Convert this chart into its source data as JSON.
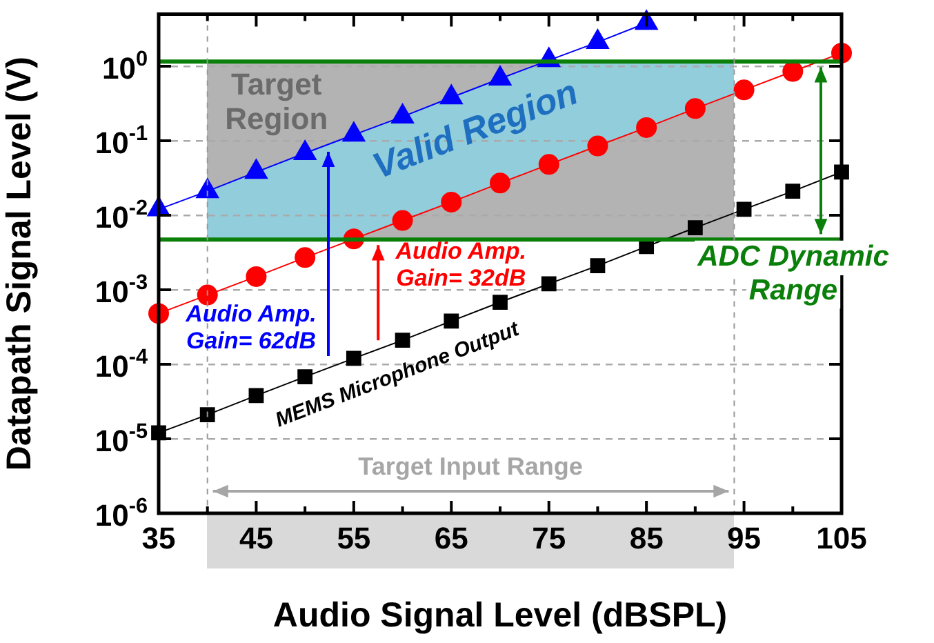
{
  "chart_data": {
    "type": "line",
    "xlabel": "Audio Signal Level (dBSPL)",
    "ylabel": "Datapath Signal Level (V)",
    "x": [
      35,
      40,
      45,
      50,
      55,
      60,
      65,
      70,
      75,
      80,
      85,
      90,
      95,
      100,
      105
    ],
    "series": [
      {
        "color": "#000000",
        "marker": "square",
        "values": [
          1.2e-05,
          2.1e-05,
          3.8e-05,
          6.8e-05,
          0.00012,
          0.00021,
          0.00038,
          0.00068,
          0.0012,
          0.0021,
          0.0038,
          0.0068,
          0.012,
          0.021,
          0.038
        ]
      },
      {
        "color": "#ff0000",
        "marker": "circle",
        "values": [
          0.00048,
          0.00085,
          0.0015,
          0.0027,
          0.0048,
          0.0085,
          0.015,
          0.027,
          0.048,
          0.085,
          0.15,
          0.27,
          0.48,
          0.85,
          1.5
        ]
      },
      {
        "color": "#0000ff",
        "marker": "triangle",
        "values": [
          0.012,
          0.021,
          0.038,
          0.068,
          0.12,
          0.21,
          0.38,
          0.68,
          1.2,
          2.1,
          3.8,
          null,
          null,
          null,
          null
        ]
      }
    ],
    "log": "y",
    "xlim": [
      35,
      105
    ],
    "xticks": [
      35,
      {
        "value": 40,
        "label": null
      },
      45,
      {
        "value": 50,
        "label": null
      },
      55,
      {
        "value": 60,
        "label": null
      },
      65,
      {
        "value": 70,
        "label": null
      },
      75,
      {
        "value": 80,
        "label": null
      },
      85,
      {
        "value": 90,
        "label": null
      },
      95,
      {
        "value": 100,
        "label": null
      },
      105
    ],
    "ylim": [
      1e-06,
      5
    ],
    "yticks": [
      {
        "value": 1e-06,
        "label": "10$^{-6}$"
      },
      {
        "value": 1e-05,
        "label": "10$^{-5}$"
      },
      {
        "value": 0.0001,
        "label": "10$^{-4}$"
      },
      {
        "value": 0.001,
        "label": "10$^{-3}$"
      },
      {
        "value": 0.01,
        "label": "10$^{-2}$"
      },
      {
        "value": 0.1,
        "label": "10$^{-1}$"
      },
      {
        "value": 1,
        "label": "10$^{0}$"
      }
    ],
    "grid": "y",
    "legend": false,
    "ref_lines": [
      {
        "axis": "y",
        "value": 1.15,
        "color": "#0a7f0a"
      },
      {
        "axis": "y",
        "value": 0.0047,
        "color": "#0a7f0a"
      },
      {
        "axis": "x",
        "value": 40,
        "color": "#999999",
        "line_style": "dashed"
      },
      {
        "axis": "x",
        "value": 94,
        "color": "#999999",
        "line_style": "dashed"
      }
    ],
    "bands": [
      {
        "axis": "x",
        "from": 40,
        "to": 94,
        "label": "Target Region",
        "color": "#b3b3b3"
      }
    ],
    "annotations": [
      "Valid Region",
      "Audio Amp.\nGain= 62dB",
      {
        "text": "Audio Amp.\nGain= 32dB",
        "x": 57.5,
        "y": 0.0047
      },
      "MEMS Microphone Output",
      "ADC Dynamic Range",
      "Target Input Range"
    ]
  }
}
